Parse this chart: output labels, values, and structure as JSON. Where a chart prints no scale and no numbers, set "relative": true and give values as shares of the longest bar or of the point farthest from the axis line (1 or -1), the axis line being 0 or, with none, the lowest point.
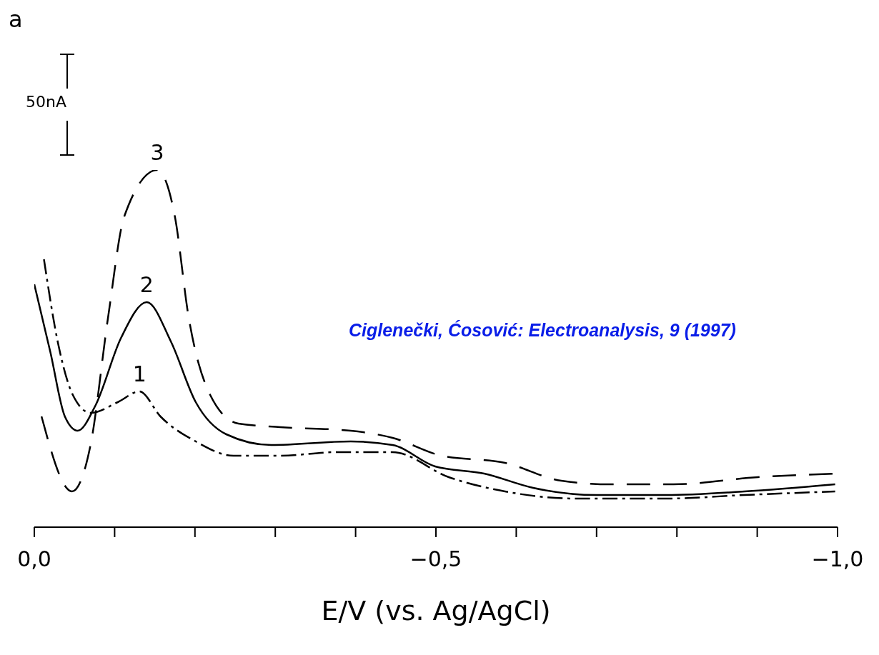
{
  "chart_data": {
    "type": "line",
    "relative": true,
    "xlabel": "E/V (vs. Ag/AgCl)",
    "xlim": [
      0,
      -1
    ],
    "xticks": [
      {
        "value": 0,
        "label": "0,0"
      },
      {
        "value": -0.1,
        "label": null
      },
      {
        "value": -0.2,
        "label": null
      },
      {
        "value": -0.3,
        "label": null
      },
      {
        "value": -0.4,
        "label": null
      },
      {
        "value": -0.5,
        "label": "−0,5"
      },
      {
        "value": -0.6,
        "label": null
      },
      {
        "value": -0.7,
        "label": null
      },
      {
        "value": -0.8,
        "label": null
      },
      {
        "value": -0.9,
        "label": null
      },
      {
        "value": -1,
        "label": "−1,0"
      }
    ],
    "annotations": [
      "a",
      "50nA",
      "Ciglenečki, Ćosović: Electroanalysis, 9 (1997)"
    ],
    "grid": false,
    "legend": false,
    "marker": "none",
    "series": [
      {
        "name": "1",
        "color": "#000000",
        "line_style": "dashdot",
        "x": [
          -0.012,
          -0.03,
          -0.048,
          -0.07,
          -0.104,
          -0.131,
          -0.157,
          -0.201,
          -0.248,
          -0.306,
          -0.376,
          -0.446,
          -0.516,
          -0.586,
          -0.674,
          -0.787,
          -0.884,
          -0.997
        ],
        "values": [
          0.75,
          0.51,
          0.37,
          0.32,
          0.35,
          0.38,
          0.31,
          0.24,
          0.2,
          0.2,
          0.21,
          0.21,
          0.14,
          0.1,
          0.08,
          0.08,
          0.09,
          0.1
        ]
      },
      {
        "name": "2",
        "color": "#000000",
        "line_style": "solid",
        "x": [
          0,
          -0.02,
          -0.038,
          -0.054,
          -0.076,
          -0.108,
          -0.14,
          -0.17,
          -0.201,
          -0.239,
          -0.295,
          -0.394,
          -0.446,
          -0.499,
          -0.56,
          -0.621,
          -0.7,
          -0.787,
          -0.884,
          -0.997
        ],
        "values": [
          0.68,
          0.49,
          0.31,
          0.27,
          0.34,
          0.53,
          0.63,
          0.52,
          0.35,
          0.26,
          0.23,
          0.24,
          0.23,
          0.17,
          0.15,
          0.11,
          0.09,
          0.09,
          0.1,
          0.12
        ]
      },
      {
        "name": "3",
        "color": "#000000",
        "line_style": "dashed",
        "x": [
          -0.009,
          -0.047,
          -0.07,
          -0.092,
          -0.112,
          -0.153,
          -0.175,
          -0.192,
          -0.219,
          -0.254,
          -0.306,
          -0.394,
          -0.446,
          -0.507,
          -0.586,
          -0.656,
          -0.717,
          -0.796,
          -0.901,
          -0.997
        ],
        "values": [
          0.31,
          0.1,
          0.23,
          0.59,
          0.87,
          1,
          0.87,
          0.59,
          0.37,
          0.29,
          0.28,
          0.27,
          0.25,
          0.2,
          0.18,
          0.13,
          0.12,
          0.12,
          0.14,
          0.15
        ]
      }
    ]
  }
}
